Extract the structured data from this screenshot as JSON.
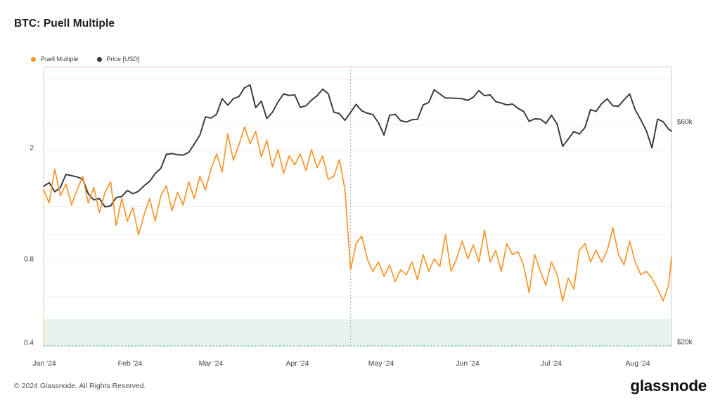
{
  "header": {
    "title": "BTC: Puell Multiple"
  },
  "legend": [
    {
      "label": "Puell Multiple",
      "color": "#f8952b"
    },
    {
      "label": "Price [USD]",
      "color": "#33363b"
    }
  ],
  "footer": {
    "copyright": "© 2024 Glassnode. All Rights Reserved.",
    "brand": "glassnode"
  },
  "chart_data": {
    "type": "line",
    "title": "BTC: Puell Multiple",
    "x_axis": {
      "labels": [
        "Jan '24",
        "Feb '24",
        "Mar '24",
        "Apr '24",
        "May '24",
        "Jun '24",
        "Jul '24",
        "Aug '24"
      ],
      "tick_days": [
        0,
        31,
        60,
        91,
        121,
        152,
        182,
        213
      ],
      "domain_days": [
        0,
        225
      ]
    },
    "left_axis": {
      "name": "Puell Multiple",
      "scale": "log",
      "range": [
        0.4,
        4.0
      ],
      "ticks": [
        {
          "v": 2,
          "label": "2"
        },
        {
          "v": 0.8,
          "label": "0.8"
        },
        {
          "v": 0.4,
          "label": "0.4"
        }
      ]
    },
    "right_axis": {
      "name": "Price [USD]",
      "scale": "log",
      "range": [
        20000,
        80000
      ],
      "ticks": [
        {
          "v": 60000,
          "label": "$60k"
        },
        {
          "v": 20000,
          "label": "$20k"
        }
      ]
    },
    "gridlines": [
      {
        "axis": "right",
        "v": 75000
      },
      {
        "axis": "right",
        "v": 60000
      },
      {
        "axis": "left",
        "v": 2
      },
      {
        "axis": "right",
        "v": 40000
      },
      {
        "axis": "left",
        "v": 1
      },
      {
        "axis": "left",
        "v": 0.8
      },
      {
        "axis": "left",
        "v": 0.6
      }
    ],
    "zones": [
      {
        "axis": "left",
        "from": 0.4,
        "to": 0.5,
        "fill": "#e7f4ed",
        "line_color": "#58b893"
      }
    ],
    "markers": [
      {
        "type": "vline",
        "day": 110,
        "color": "#9c9c9c",
        "style": "dotted"
      }
    ],
    "days": [
      0,
      2,
      4,
      6,
      8,
      10,
      12,
      14,
      16,
      18,
      20,
      22,
      24,
      26,
      28,
      30,
      32,
      34,
      36,
      38,
      40,
      42,
      44,
      46,
      48,
      50,
      52,
      54,
      56,
      58,
      60,
      62,
      64,
      66,
      68,
      70,
      72,
      74,
      76,
      78,
      80,
      82,
      84,
      86,
      88,
      90,
      92,
      94,
      96,
      98,
      100,
      102,
      104,
      106,
      108,
      110,
      112,
      114,
      116,
      118,
      120,
      122,
      124,
      126,
      128,
      130,
      132,
      134,
      136,
      138,
      140,
      142,
      144,
      146,
      148,
      150,
      152,
      154,
      156,
      158,
      160,
      162,
      164,
      166,
      168,
      170,
      172,
      174,
      176,
      178,
      180,
      182,
      184,
      186,
      188,
      190,
      192,
      194,
      196,
      198,
      200,
      202,
      204,
      206,
      208,
      210,
      212,
      214,
      216,
      218,
      220,
      222,
      224,
      225
    ],
    "series": [
      {
        "name": "Price [USD]",
        "axis": "right",
        "color": "#33363b",
        "values": [
          44200,
          45000,
          43000,
          43900,
          46900,
          46600,
          46300,
          45800,
          42600,
          41300,
          41600,
          39900,
          40100,
          41800,
          42000,
          43300,
          42600,
          43100,
          44300,
          45300,
          47100,
          48300,
          51800,
          52000,
          51700,
          51600,
          52300,
          54500,
          57000,
          62400,
          62000,
          63200,
          68300,
          66100,
          68300,
          69000,
          72100,
          73100,
          65300,
          67500,
          61900,
          63800,
          67200,
          69900,
          69400,
          69600,
          65400,
          65900,
          67800,
          69300,
          71600,
          70000,
          63900,
          63400,
          61300,
          63800,
          66400,
          64300,
          63500,
          63100,
          60600,
          57000,
          62900,
          63200,
          61200,
          60800,
          61500,
          61600,
          66200,
          67000,
          71400,
          69900,
          68500,
          68500,
          68400,
          68300,
          67700,
          68800,
          71100,
          69300,
          69600,
          67300,
          66800,
          66200,
          66500,
          65100,
          64100,
          61000,
          61800,
          61700,
          60400,
          62900,
          60200,
          53900,
          55900,
          58000,
          57300,
          59200,
          64700,
          64100,
          66700,
          68200,
          65900,
          65800,
          67900,
          69900,
          64600,
          61500,
          58200,
          53500,
          61700,
          60900,
          58700,
          58100
        ]
      },
      {
        "name": "Puell Multiple",
        "axis": "left",
        "color": "#f8952b",
        "values": [
          1.45,
          1.3,
          1.72,
          1.38,
          1.52,
          1.28,
          1.45,
          1.62,
          1.3,
          1.48,
          1.2,
          1.42,
          1.55,
          1.08,
          1.35,
          1.12,
          1.25,
          1.0,
          1.18,
          1.35,
          1.12,
          1.38,
          1.5,
          1.22,
          1.42,
          1.28,
          1.55,
          1.35,
          1.62,
          1.45,
          1.72,
          1.95,
          1.68,
          2.3,
          1.85,
          2.1,
          2.44,
          2.12,
          2.35,
          1.9,
          2.18,
          1.75,
          2.02,
          1.66,
          1.92,
          1.78,
          1.95,
          1.7,
          2.02,
          1.74,
          1.92,
          1.58,
          1.62,
          1.86,
          1.45,
          0.75,
          0.93,
          0.99,
          0.82,
          0.74,
          0.8,
          0.71,
          0.78,
          0.68,
          0.75,
          0.72,
          0.8,
          0.69,
          0.85,
          0.74,
          0.82,
          0.77,
          1.0,
          0.74,
          0.82,
          0.95,
          0.82,
          0.92,
          0.8,
          1.04,
          0.8,
          0.88,
          0.74,
          0.93,
          0.85,
          0.87,
          0.78,
          0.62,
          0.85,
          0.74,
          0.66,
          0.8,
          0.72,
          0.58,
          0.7,
          0.64,
          0.88,
          0.93,
          0.8,
          0.88,
          0.8,
          0.88,
          1.06,
          0.85,
          0.78,
          0.95,
          0.8,
          0.72,
          0.74,
          0.7,
          0.64,
          0.58,
          0.66,
          0.83
        ]
      }
    ]
  }
}
